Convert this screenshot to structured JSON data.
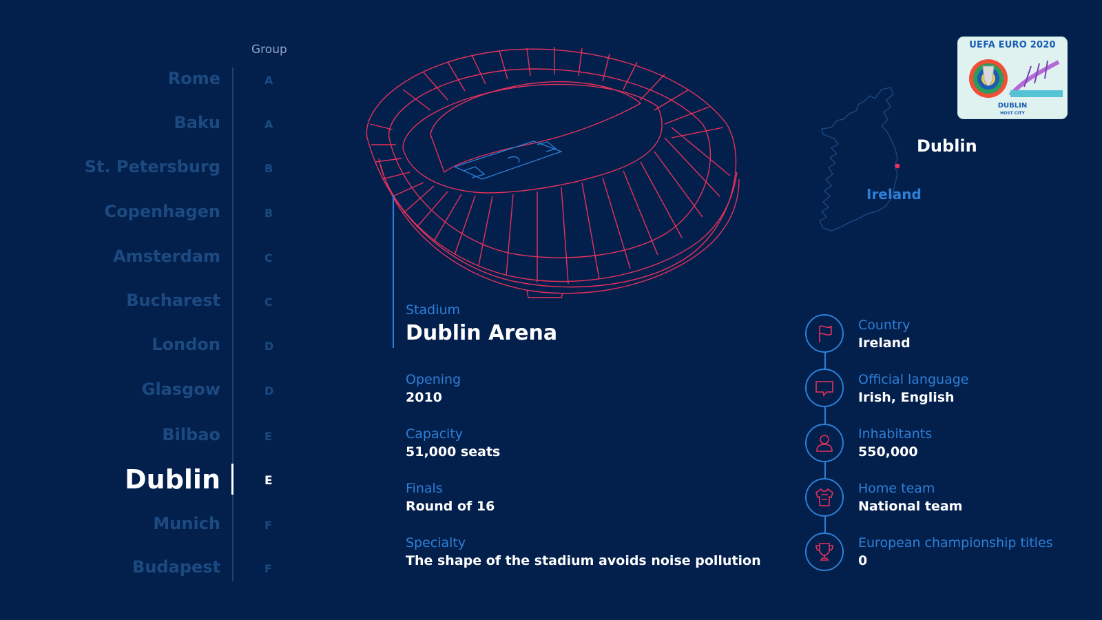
{
  "group_header": "Group",
  "cities": [
    {
      "name": "Rome",
      "group": "A"
    },
    {
      "name": "Baku",
      "group": "A"
    },
    {
      "name": "St. Petersburg",
      "group": "B"
    },
    {
      "name": "Copenhagen",
      "group": "B"
    },
    {
      "name": "Amsterdam",
      "group": "C"
    },
    {
      "name": "Bucharest",
      "group": "C"
    },
    {
      "name": "London",
      "group": "D"
    },
    {
      "name": "Glasgow",
      "group": "D"
    },
    {
      "name": "Bilbao",
      "group": "E"
    },
    {
      "name": "Dublin",
      "group": "E",
      "active": true
    },
    {
      "name": "Munich",
      "group": "F"
    },
    {
      "name": "Budapest",
      "group": "F"
    }
  ],
  "stadium": {
    "label": "Stadium",
    "name": "Dublin Arena",
    "details": [
      {
        "label": "Opening",
        "value": "2010"
      },
      {
        "label": "Capacity",
        "value": "51,000 seats"
      },
      {
        "label": "Finals",
        "value": "Round of 16"
      },
      {
        "label": "Specialty",
        "value": "The shape of the stadium avoids noise pollution"
      }
    ]
  },
  "map": {
    "city": "Dublin",
    "country": "Ireland"
  },
  "badge": {
    "title": "UEFA EURO 2020",
    "city": "DUBLIN",
    "subtitle": "HOST CITY"
  },
  "facts": [
    {
      "icon": "flag-icon",
      "label": "Country",
      "value": "Ireland"
    },
    {
      "icon": "speech-bubble-icon",
      "label": "Official language",
      "value": "Irish, English"
    },
    {
      "icon": "person-icon",
      "label": "Inhabitants",
      "value": "550,000"
    },
    {
      "icon": "jersey-icon",
      "label": "Home team",
      "value": "National team"
    },
    {
      "icon": "trophy-icon",
      "label": "European championship titles",
      "value": "0"
    }
  ],
  "colors": {
    "background": "#03204d",
    "accent_blue": "#2f7fd6",
    "stadium_red": "#e8315b",
    "inactive_text": "#1c4a80",
    "active_text": "#ffffff"
  }
}
